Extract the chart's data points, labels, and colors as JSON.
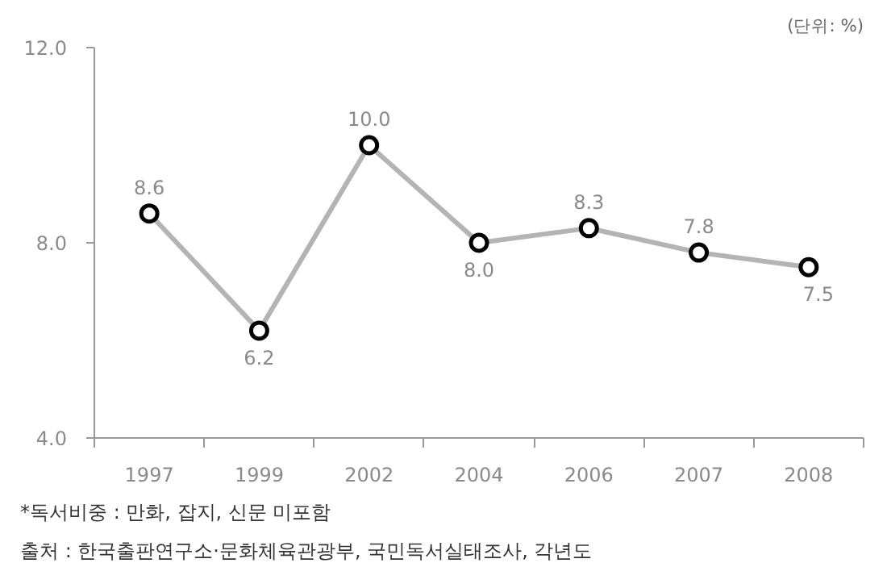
{
  "chart_data": {
    "type": "line",
    "categories": [
      "1997",
      "1999",
      "2002",
      "2004",
      "2006",
      "2007",
      "2008"
    ],
    "series": [
      {
        "color": "#b4b4b4",
        "values": [
          8.6,
          6.2,
          10.0,
          8.0,
          8.3,
          7.8,
          7.5
        ],
        "value_labels": [
          "8.6",
          "6.2",
          "10.0",
          "8.0",
          "8.3",
          "7.8",
          "7.5"
        ]
      }
    ],
    "ylim": [
      4.0,
      12.0
    ],
    "yticks": [
      {
        "value": 4,
        "label": "4.0"
      },
      {
        "value": 8,
        "label": "8.0"
      },
      {
        "value": 12,
        "label": "12.0"
      }
    ],
    "grid": false,
    "marker": "circle",
    "line_style": "solid",
    "annotations": [
      "(단위: %)",
      "*독서비중 : 만화, 잡지, 신문 미포함",
      "출처 : 한국출판연구소·문화체육관광부, 국민독서실태조사, 각년도"
    ]
  }
}
